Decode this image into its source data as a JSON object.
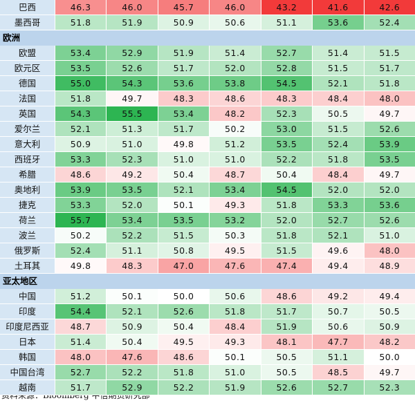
{
  "chart_data": {
    "type": "heatmap",
    "groups": [
      {
        "name": "",
        "rows": [
          {
            "label": "巴西",
            "values": [
              46.3,
              46.0,
              45.7,
              46.0,
              43.2,
              41.6,
              42.6
            ]
          },
          {
            "label": "墨西哥",
            "values": [
              51.8,
              51.9,
              50.9,
              50.6,
              51.1,
              53.6,
              52.4
            ]
          }
        ]
      },
      {
        "name": "欧洲",
        "rows": [
          {
            "label": "欧盟",
            "values": [
              53.4,
              52.9,
              51.9,
              51.4,
              52.7,
              51.4,
              51.5
            ]
          },
          {
            "label": "欧元区",
            "values": [
              53.5,
              52.6,
              51.7,
              52.0,
              52.8,
              51.5,
              51.7
            ]
          },
          {
            "label": "德国",
            "values": [
              55.0,
              54.3,
              53.6,
              53.8,
              54.5,
              52.1,
              51.8
            ]
          },
          {
            "label": "法国",
            "values": [
              51.8,
              49.7,
              48.3,
              48.6,
              48.3,
              48.4,
              48.0
            ]
          },
          {
            "label": "英国",
            "values": [
              54.3,
              55.5,
              53.4,
              48.2,
              52.3,
              50.5,
              49.7
            ]
          },
          {
            "label": "爱尔兰",
            "values": [
              52.1,
              51.3,
              51.7,
              50.2,
              53.0,
              51.5,
              52.6
            ]
          },
          {
            "label": "意大利",
            "values": [
              50.9,
              51.0,
              49.8,
              51.2,
              53.5,
              52.4,
              53.9
            ]
          },
          {
            "label": "西班牙",
            "values": [
              53.3,
              52.3,
              51.0,
              51.0,
              52.2,
              51.8,
              53.5
            ]
          },
          {
            "label": "希腊",
            "values": [
              48.6,
              49.2,
              50.4,
              48.7,
              50.4,
              48.4,
              49.7
            ]
          },
          {
            "label": "奥地利",
            "values": [
              53.9,
              53.5,
              52.1,
              53.4,
              54.5,
              52.0,
              52.0
            ]
          },
          {
            "label": "捷克",
            "values": [
              53.3,
              52.0,
              50.1,
              49.3,
              51.8,
              53.3,
              53.6
            ]
          },
          {
            "label": "荷兰",
            "values": [
              55.7,
              53.4,
              53.5,
              53.2,
              52.0,
              52.7,
              52.6
            ]
          },
          {
            "label": "波兰",
            "values": [
              50.2,
              52.2,
              51.5,
              50.3,
              51.8,
              52.1,
              51.0
            ]
          },
          {
            "label": "俄罗斯",
            "values": [
              52.4,
              51.1,
              50.8,
              49.5,
              51.5,
              49.6,
              48.0
            ]
          },
          {
            "label": "土耳其",
            "values": [
              49.8,
              48.3,
              47.0,
              47.6,
              47.4,
              49.4,
              48.9
            ]
          }
        ]
      },
      {
        "name": "亚太地区",
        "rows": [
          {
            "label": "中国",
            "values": [
              51.2,
              50.1,
              50.0,
              50.6,
              48.6,
              49.2,
              49.4
            ]
          },
          {
            "label": "印度",
            "values": [
              54.4,
              52.1,
              52.6,
              51.8,
              51.7,
              50.7,
              50.5
            ]
          },
          {
            "label": "印度尼西亚",
            "values": [
              48.7,
              50.9,
              50.4,
              48.4,
              51.9,
              50.6,
              50.9
            ]
          },
          {
            "label": "日本",
            "values": [
              51.4,
              50.4,
              49.5,
              49.3,
              48.1,
              47.7,
              48.2
            ]
          },
          {
            "label": "韩国",
            "values": [
              48.0,
              47.6,
              48.6,
              50.1,
              50.5,
              51.1,
              50.0
            ]
          },
          {
            "label": "中国台湾",
            "values": [
              52.7,
              52.2,
              51.8,
              51.0,
              50.5,
              48.5,
              49.7
            ]
          },
          {
            "label": "越南",
            "values": [
              51.7,
              52.9,
              52.2,
              51.9,
              52.6,
              52.7,
              52.3
            ]
          }
        ]
      }
    ],
    "color_scale": {
      "low": "#f23a3a",
      "mid": "#ffffff",
      "high": "#2db552"
    }
  },
  "source_note": "资料来源：Bloomberg  中信期货研究部"
}
